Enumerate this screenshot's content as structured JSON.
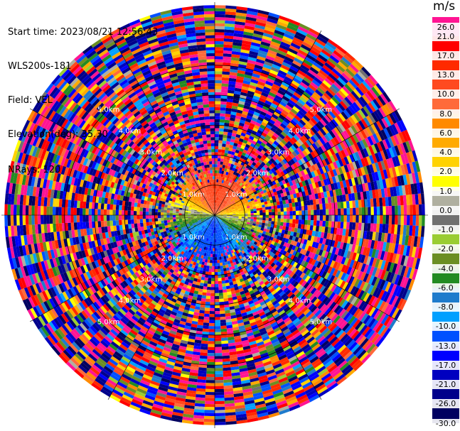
{
  "info": {
    "start_time": "Start time: 2023/08/21 12:56:43",
    "instrument": "WLS200s-181",
    "field": "Field: VEL",
    "elevation": "Elevation(deg): 35.30",
    "nrays": "NRays: 120"
  },
  "colorbar": {
    "unit": "m/s",
    "ticks": [
      "26.0",
      "21.0",
      "17.0",
      "13.0",
      "10.0",
      "8.0",
      "6.0",
      "4.0",
      "2.0",
      "1.0",
      "0.0",
      "-1.0",
      "-2.0",
      "-4.0",
      "-6.0",
      "-8.0",
      "-10.0",
      "-13.0",
      "-17.0",
      "-21.0",
      "-26.0",
      "-30.0"
    ],
    "colors": [
      "#ff1493",
      "#ff0000",
      "#ff2a00",
      "#ff4a20",
      "#ff6a3a",
      "#ff8a00",
      "#ffaa00",
      "#ffd200",
      "#ffff00",
      "#b0b0a0",
      "#707070",
      "#9acd32",
      "#6b8e23",
      "#228b22",
      "#1e7bcc",
      "#00a0ff",
      "#0050ff",
      "#0000ff",
      "#0000c0",
      "#00008b",
      "#000060"
    ]
  },
  "chart_data": {
    "type": "heatmap",
    "title": "",
    "projection": "polar PPI",
    "field": "VEL",
    "units": "m/s",
    "nrays": 120,
    "range_rings_km": [
      1.0,
      2.0,
      3.0,
      4.0,
      5.0
    ],
    "range_labels": [
      "1.0km",
      "2.0km",
      "3.0km",
      "4.0km",
      "5.0km"
    ],
    "color_scale_min": -30.0,
    "color_scale_max": 26.0,
    "velocity_pattern": {
      "north_near_range": "positive (8 to 13 m/s, orange/red)",
      "east_near_range": "near zero to +2 m/s (yellow)",
      "south_near_range": "negative (-8 to -17 m/s, blue)",
      "west_near_range": "positive (4 to 8 m/s, orange/yellow)",
      "far_range": "noise (random values across full scale)"
    }
  }
}
